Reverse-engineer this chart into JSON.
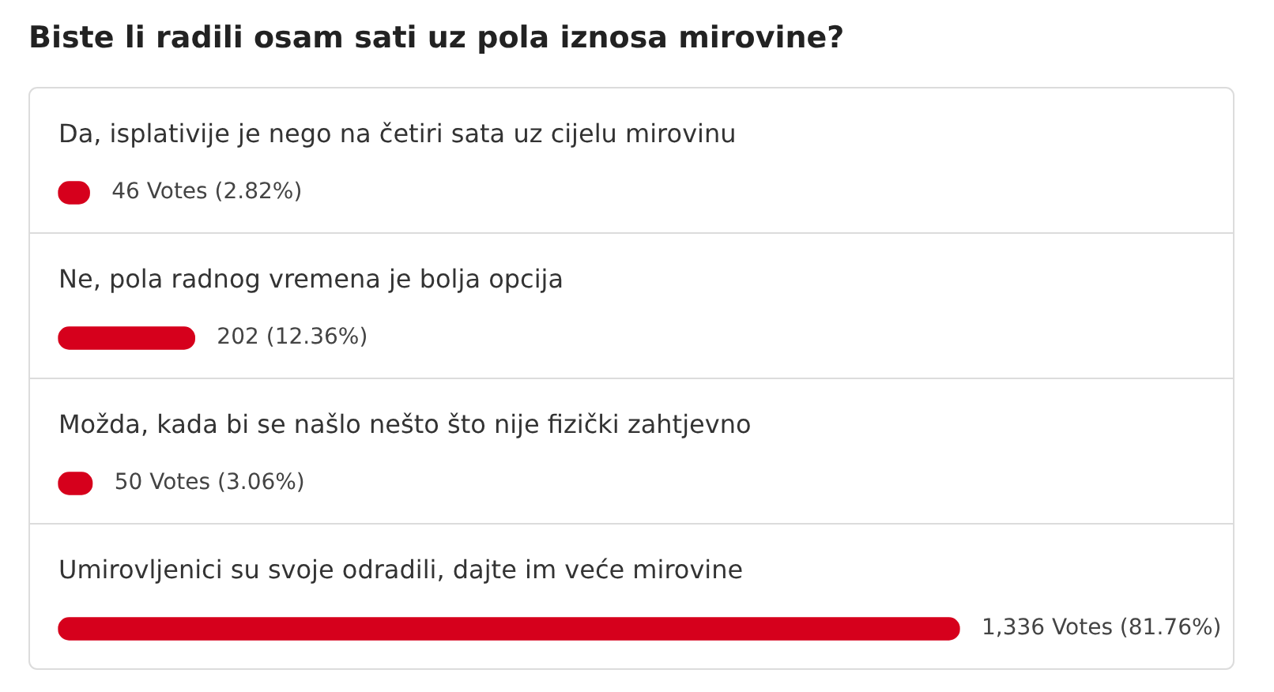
{
  "chart_data": {
    "type": "bar",
    "orientation": "horizontal",
    "title": "Biste li radili osam sati uz pola iznosa mirovine?",
    "categories": [
      "Da, isplativije je nego na četiri sata uz cijelu mirovinu",
      "Ne, pola radnog vremena je bolja opcija",
      "Možda, kada bi se našlo nešto što nije fizički zahtjevno",
      "Umirovljenici su svoje odradili, dajte im veće mirovine"
    ],
    "values": [
      46,
      202,
      50,
      1336
    ],
    "color": "#d6001c",
    "value_labels": [
      "46 Votes (2.82%)",
      "202 (12.36%)",
      "50 Votes (3.06%)",
      "1,336 Votes (81.76%)"
    ]
  }
}
